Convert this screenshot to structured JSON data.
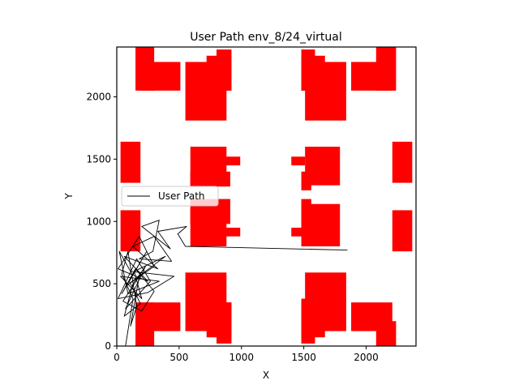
{
  "chart_data": {
    "type": "line",
    "title": "User Path env_8/24_virtual",
    "xlabel": "X",
    "ylabel": "Y",
    "xlim": [
      0,
      2400
    ],
    "ylim": [
      0,
      2400
    ],
    "xticks": [
      0,
      500,
      1000,
      1500,
      2000
    ],
    "yticks": [
      0,
      500,
      1000,
      1500,
      2000
    ],
    "grid": false,
    "legend": {
      "placement": "center-left",
      "entries": [
        "User Path"
      ]
    },
    "obstacle_color": "#ff0000",
    "path_color": "#000000",
    "obstacles": [
      {
        "x0": 150,
        "y0": 2050,
        "x1": 300,
        "y1": 2400
      },
      {
        "x0": 190,
        "y0": 2050,
        "x1": 510,
        "y1": 2280
      },
      {
        "x0": 550,
        "y0": 1810,
        "x1": 880,
        "y1": 2280
      },
      {
        "x0": 720,
        "y0": 2050,
        "x1": 920,
        "y1": 2330
      },
      {
        "x0": 800,
        "y0": 2050,
        "x1": 920,
        "y1": 2380
      },
      {
        "x0": 1480,
        "y0": 2050,
        "x1": 1590,
        "y1": 2380
      },
      {
        "x0": 1480,
        "y0": 2050,
        "x1": 1670,
        "y1": 2330
      },
      {
        "x0": 1510,
        "y0": 1810,
        "x1": 1840,
        "y1": 2280
      },
      {
        "x0": 1880,
        "y0": 2050,
        "x1": 2210,
        "y1": 2280
      },
      {
        "x0": 2080,
        "y0": 2050,
        "x1": 2240,
        "y1": 2400
      },
      {
        "x0": 30,
        "y0": 1310,
        "x1": 190,
        "y1": 1640
      },
      {
        "x0": 590,
        "y0": 1290,
        "x1": 880,
        "y1": 1600
      },
      {
        "x0": 590,
        "y0": 1280,
        "x1": 910,
        "y1": 1400
      },
      {
        "x0": 840,
        "y0": 1450,
        "x1": 990,
        "y1": 1520
      },
      {
        "x0": 1400,
        "y0": 1450,
        "x1": 1510,
        "y1": 1520
      },
      {
        "x0": 1480,
        "y0": 1250,
        "x1": 1560,
        "y1": 1400
      },
      {
        "x0": 1510,
        "y0": 1290,
        "x1": 1790,
        "y1": 1600
      },
      {
        "x0": 2210,
        "y0": 1310,
        "x1": 2370,
        "y1": 1640
      },
      {
        "x0": 30,
        "y0": 760,
        "x1": 190,
        "y1": 1090
      },
      {
        "x0": 590,
        "y0": 800,
        "x1": 880,
        "y1": 1110
      },
      {
        "x0": 590,
        "y0": 980,
        "x1": 910,
        "y1": 1180
      },
      {
        "x0": 840,
        "y0": 880,
        "x1": 990,
        "y1": 950
      },
      {
        "x0": 1400,
        "y0": 880,
        "x1": 1510,
        "y1": 950
      },
      {
        "x0": 1480,
        "y0": 800,
        "x1": 1790,
        "y1": 1140
      },
      {
        "x0": 1480,
        "y0": 980,
        "x1": 1560,
        "y1": 1180
      },
      {
        "x0": 2210,
        "y0": 760,
        "x1": 2370,
        "y1": 1090
      },
      {
        "x0": 150,
        "y0": 0,
        "x1": 300,
        "y1": 350
      },
      {
        "x0": 190,
        "y0": 120,
        "x1": 510,
        "y1": 350
      },
      {
        "x0": 550,
        "y0": 120,
        "x1": 880,
        "y1": 590
      },
      {
        "x0": 720,
        "y0": 70,
        "x1": 920,
        "y1": 350
      },
      {
        "x0": 800,
        "y0": 20,
        "x1": 920,
        "y1": 350
      },
      {
        "x0": 1480,
        "y0": 20,
        "x1": 1590,
        "y1": 380
      },
      {
        "x0": 1480,
        "y0": 70,
        "x1": 1670,
        "y1": 350
      },
      {
        "x0": 1510,
        "y0": 120,
        "x1": 1840,
        "y1": 590
      },
      {
        "x0": 1880,
        "y0": 120,
        "x1": 2210,
        "y1": 350
      },
      {
        "x0": 2080,
        "y0": 0,
        "x1": 2240,
        "y1": 200
      }
    ],
    "series": [
      {
        "name": "User Path",
        "points": [
          [
            1850,
            770
          ],
          [
            550,
            800
          ],
          [
            490,
            900
          ],
          [
            560,
            960
          ],
          [
            330,
            920
          ],
          [
            430,
            780
          ],
          [
            200,
            960
          ],
          [
            340,
            1010
          ],
          [
            290,
            760
          ],
          [
            180,
            700
          ],
          [
            440,
            680
          ],
          [
            300,
            880
          ],
          [
            130,
            800
          ],
          [
            330,
            620
          ],
          [
            60,
            720
          ],
          [
            250,
            520
          ],
          [
            10,
            620
          ],
          [
            180,
            880
          ],
          [
            300,
            640
          ],
          [
            70,
            480
          ],
          [
            390,
            720
          ],
          [
            140,
            600
          ],
          [
            200,
            380
          ],
          [
            30,
            560
          ],
          [
            340,
            520
          ],
          [
            90,
            420
          ],
          [
            20,
            760
          ],
          [
            110,
            600
          ],
          [
            460,
            560
          ],
          [
            250,
            430
          ],
          [
            10,
            380
          ],
          [
            160,
            700
          ],
          [
            270,
            520
          ],
          [
            70,
            300
          ],
          [
            230,
            640
          ],
          [
            130,
            500
          ],
          [
            60,
            240
          ],
          [
            190,
            340
          ],
          [
            100,
            520
          ],
          [
            240,
            760
          ],
          [
            40,
            420
          ],
          [
            150,
            620
          ],
          [
            300,
            440
          ],
          [
            200,
            280
          ],
          [
            50,
            360
          ],
          [
            180,
            560
          ],
          [
            110,
            160
          ],
          [
            160,
            320
          ],
          [
            90,
            760
          ],
          [
            40,
            580
          ],
          [
            130,
            380
          ],
          [
            70,
            0
          ]
        ]
      }
    ]
  }
}
